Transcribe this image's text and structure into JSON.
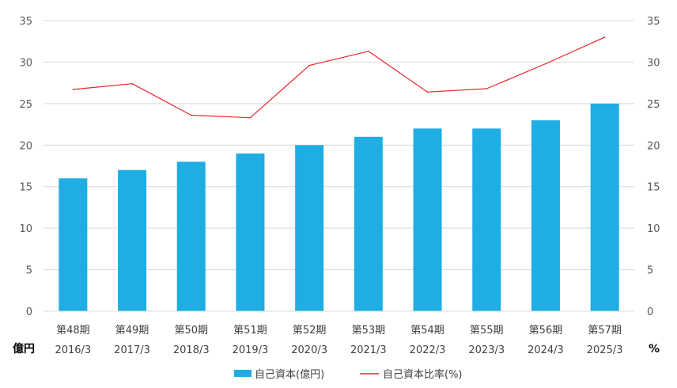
{
  "chart_data": {
    "type": "bar+line",
    "categories": [
      {
        "period": "第48期",
        "date": "2016/3"
      },
      {
        "period": "第49期",
        "date": "2017/3"
      },
      {
        "period": "第50期",
        "date": "2018/3"
      },
      {
        "period": "第51期",
        "date": "2019/3"
      },
      {
        "period": "第52期",
        "date": "2020/3"
      },
      {
        "period": "第53期",
        "date": "2021/3"
      },
      {
        "period": "第54期",
        "date": "2022/3"
      },
      {
        "period": "第55期",
        "date": "2023/3"
      },
      {
        "period": "第56期",
        "date": "2024/3"
      },
      {
        "period": "第57期",
        "date": "2025/3"
      }
    ],
    "series": [
      {
        "name": "自己資本(億円)",
        "type": "bar",
        "axis": "left",
        "color": "#1eaee3",
        "values": [
          16,
          17,
          18,
          19,
          20,
          21,
          22,
          22,
          23,
          25
        ]
      },
      {
        "name": "自己資本比率(%)",
        "type": "line",
        "axis": "right",
        "color": "#e8262b",
        "values": [
          26.7,
          27.4,
          23.6,
          23.3,
          29.6,
          31.3,
          26.4,
          26.8,
          29.8,
          33.0
        ]
      }
    ],
    "left_axis": {
      "unit_label": "億円",
      "min": 0,
      "max": 35,
      "ticks": [
        0,
        5,
        10,
        15,
        20,
        25,
        30,
        35
      ]
    },
    "right_axis": {
      "unit_label": "%",
      "min": 0,
      "max": 35,
      "ticks": [
        0,
        5,
        10,
        15,
        20,
        25,
        30,
        35
      ]
    },
    "grid": true,
    "legend_position": "bottom-center"
  }
}
